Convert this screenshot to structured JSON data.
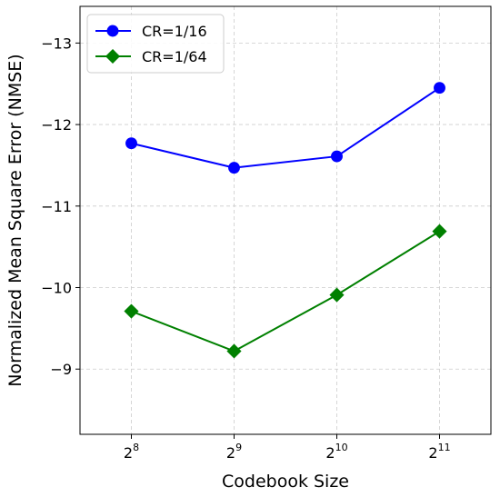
{
  "chart_data": {
    "type": "line",
    "title": "",
    "xlabel": "Codebook Size",
    "ylabel": "Normalized Mean Square Error (NMSE)",
    "categories": [
      {
        "base": "2",
        "exp": "8"
      },
      {
        "base": "2",
        "exp": "9"
      },
      {
        "base": "2",
        "exp": "10"
      },
      {
        "base": "2",
        "exp": "11"
      }
    ],
    "ylim": [
      -8.2,
      -13.45
    ],
    "y_inverted": true,
    "yticks": [
      -13,
      -12,
      -11,
      -10,
      -9
    ],
    "ytick_labels": [
      "−13",
      "−12",
      "−11",
      "−10",
      "−9"
    ],
    "grid": true,
    "legend_position": "top-left",
    "series": [
      {
        "name": "CR=1/16",
        "values": [
          -11.77,
          -11.47,
          -11.61,
          -12.45
        ],
        "color": "#0000ff",
        "marker": "circle"
      },
      {
        "name": "CR=1/64",
        "values": [
          -9.71,
          -9.22,
          -9.91,
          -10.69
        ],
        "color": "#008000",
        "marker": "diamond"
      }
    ]
  }
}
